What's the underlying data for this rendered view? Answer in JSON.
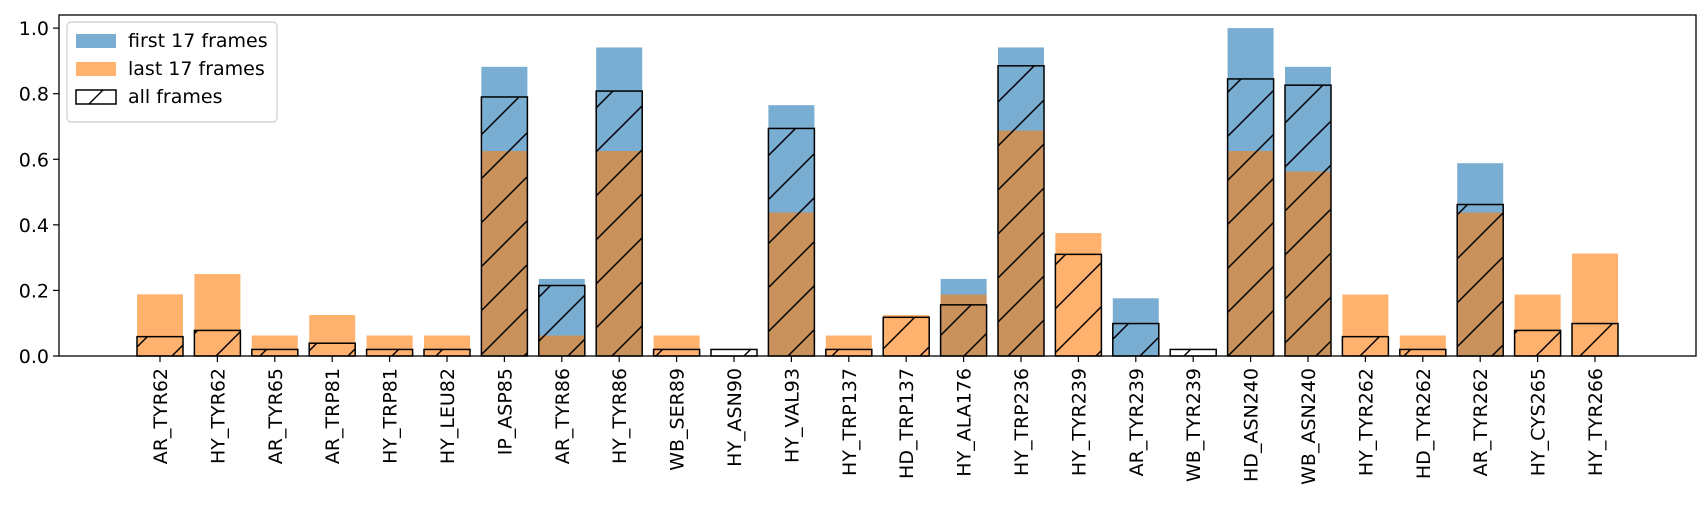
{
  "chart_data": {
    "type": "bar",
    "categories": [
      "AR_TYR62",
      "HY_TYR62",
      "AR_TYR65",
      "AR_TRP81",
      "HY_TRP81",
      "HY_LEU82",
      "IP_ASP85",
      "AR_TYR86",
      "HY_TYR86",
      "WB_SER89",
      "HY_ASN90",
      "HY_VAL93",
      "HY_TRP137",
      "HD_TRP137",
      "HY_ALA176",
      "HY_TRP236",
      "HY_TYR239",
      "AR_TYR239",
      "WB_TYR239",
      "HD_ASN240",
      "WB_ASN240",
      "HY_TYR262",
      "HD_TYR262",
      "AR_TYR262",
      "HY_CYS265",
      "HY_TYR266"
    ],
    "series": [
      {
        "name": "first 17 frames",
        "color": "#1f77b4",
        "alpha": 0.6,
        "style": "filled",
        "values": [
          0,
          0,
          0,
          0,
          0,
          0,
          0.882,
          0.235,
          0.941,
          0,
          0,
          0.765,
          0,
          0,
          0.235,
          0.941,
          0,
          0.176,
          0,
          1.0,
          0.882,
          0,
          0,
          0.588,
          0,
          0
        ]
      },
      {
        "name": "last 17 frames",
        "color": "#ff7f0e",
        "alpha": 0.6,
        "style": "filled",
        "values": [
          0.188,
          0.25,
          0.0625,
          0.125,
          0.0625,
          0.0625,
          0.625,
          0.0625,
          0.625,
          0.0625,
          0,
          0.4375,
          0.0625,
          0.125,
          0.1875,
          0.6875,
          0.375,
          0,
          0,
          0.625,
          0.5625,
          0.1875,
          0.0625,
          0.4375,
          0.1875,
          0.3125
        ]
      },
      {
        "name": "all frames",
        "color": "#000000",
        "style": "hatched-outline",
        "values": [
          0.059,
          0.078,
          0.02,
          0.039,
          0.02,
          0.02,
          0.79,
          0.215,
          0.808,
          0.02,
          0.02,
          0.694,
          0.02,
          0.118,
          0.156,
          0.885,
          0.31,
          0.099,
          0.02,
          0.845,
          0.826,
          0.059,
          0.02,
          0.462,
          0.078,
          0.099
        ]
      }
    ],
    "yticks": [
      "0.0",
      "0.2",
      "0.4",
      "0.6",
      "0.8",
      "1.0"
    ],
    "ylim": [
      0,
      1.04
    ],
    "title": "",
    "xlabel": "",
    "ylabel": "",
    "legend": {
      "position": "top-left"
    },
    "grid": false
  }
}
